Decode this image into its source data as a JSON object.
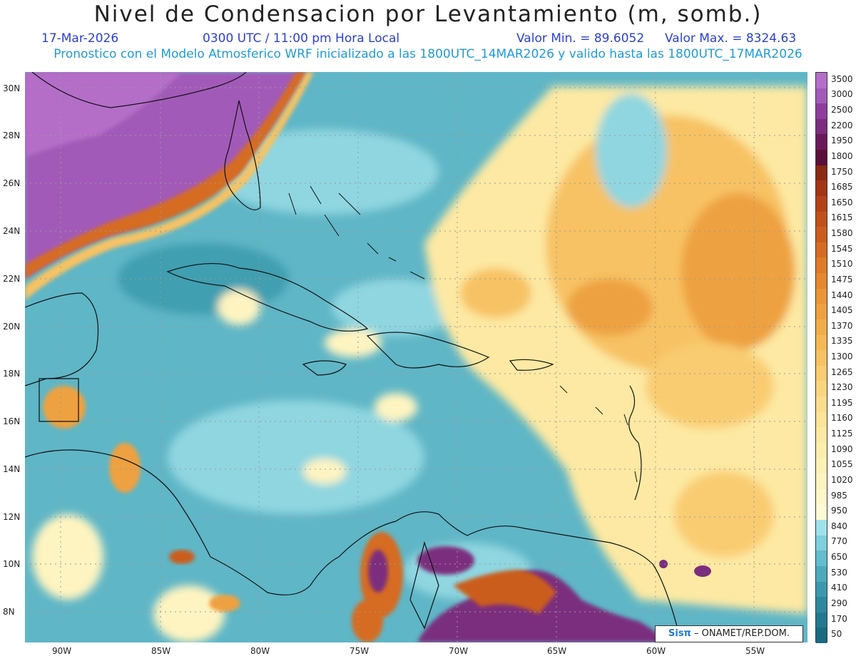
{
  "header": {
    "title": "Nivel de Condensacion por Levantamiento (m, somb.)",
    "date": "17-Mar-2026",
    "time": "0300 UTC / 11:00 pm Hora Local",
    "min_label": "Valor Min. = 89.6052",
    "max_label": "Valor Max. = 8324.63",
    "model_info": "Pronostico con el Modelo Atmosferico WRF inicializado a las 1800UTC_14MAR2026 y valido hasta las  1800UTC_17MAR2026"
  },
  "map": {
    "lat_labels": [
      "30N",
      "28N",
      "26N",
      "24N",
      "22N",
      "20N",
      "18N",
      "16N",
      "14N",
      "12N",
      "10N",
      "8N"
    ],
    "lon_labels": [
      "90W",
      "85W",
      "80W",
      "75W",
      "70W",
      "65W",
      "60W",
      "55W"
    ]
  },
  "credit": {
    "brand": "Sisπ",
    "text": " – ONAMET/REP.DOM."
  },
  "colorbar": {
    "labels": [
      "3500",
      "3000",
      "2500",
      "2200",
      "1950",
      "1800",
      "1750",
      "1685",
      "1650",
      "1615",
      "1580",
      "1545",
      "1510",
      "1475",
      "1440",
      "1405",
      "1370",
      "1335",
      "1300",
      "1265",
      "1230",
      "1195",
      "1160",
      "1125",
      "1090",
      "1055",
      "1020",
      "985",
      "950",
      "840",
      "770",
      "650",
      "530",
      "410",
      "290",
      "170",
      "50"
    ],
    "colors": [
      "#b46ec8",
      "#a25ab8",
      "#8e3d9c",
      "#7b2d7e",
      "#6a1a5a",
      "#5a1038",
      "#8a2a14",
      "#a23516",
      "#b44319",
      "#c0501c",
      "#cb5d1f",
      "#d66c23",
      "#de7a29",
      "#e5882f",
      "#ea9537",
      "#eea140",
      "#f2ad4b",
      "#f5b857",
      "#f7c264",
      "#f9cc71",
      "#fad57f",
      "#fbdd8c",
      "#fce398",
      "#fde9a3",
      "#fdedad",
      "#fef1b7",
      "#fef4c1",
      "#fff7cb",
      "#fffad6",
      "#9fe1ea",
      "#7fcfdc",
      "#63bccd",
      "#4fa9bd",
      "#3e98ad",
      "#2f879e",
      "#237890",
      "#1a6a82"
    ]
  }
}
